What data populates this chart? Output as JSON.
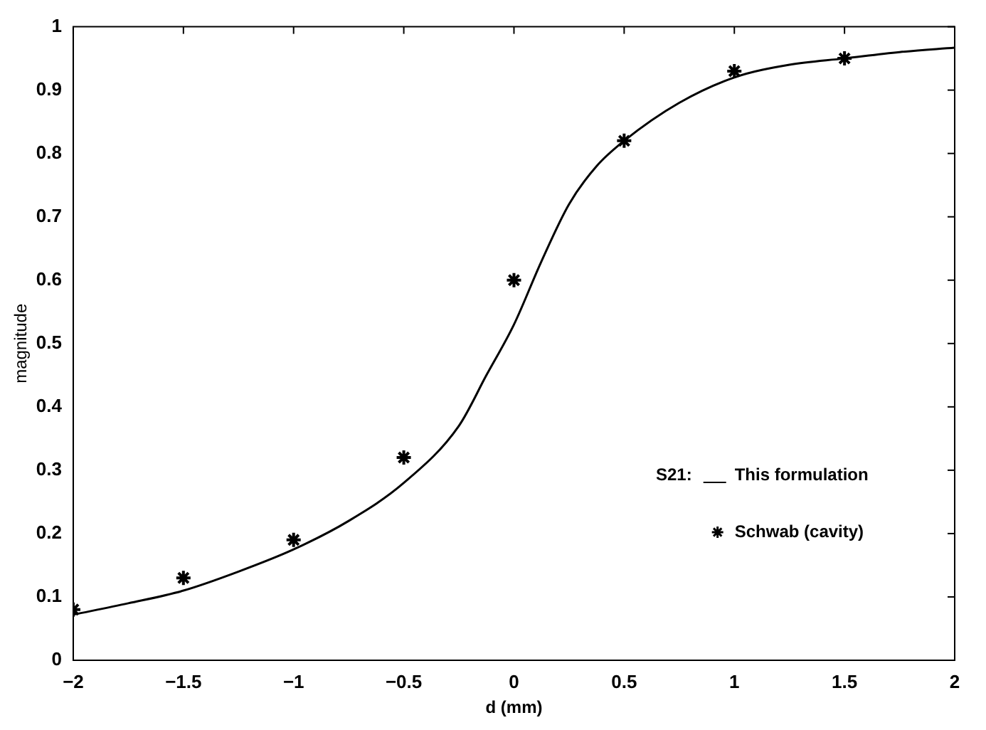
{
  "chart_data": {
    "type": "line",
    "xlabel": "d (mm)",
    "ylabel": "magnitude",
    "legend_title": "S21:",
    "xlim": [
      -2,
      2
    ],
    "xticks": [
      -2,
      -1.5,
      -1,
      -0.5,
      0,
      0.5,
      1,
      1.5,
      2
    ],
    "ylim": [
      0,
      1
    ],
    "yticks": [
      0,
      0.1,
      0.2,
      0.3,
      0.4,
      0.5,
      0.6,
      0.7,
      0.8,
      0.9,
      1
    ],
    "grid": false,
    "legend": "bottom right",
    "series": [
      {
        "name": "This formulation",
        "color": "#000000",
        "marker": "none",
        "line_style": "solid",
        "x": [
          -2,
          -1.75,
          -1.5,
          -1.25,
          -1,
          -0.75,
          -0.5,
          -0.25,
          -0.125,
          0,
          0.125,
          0.25,
          0.375,
          0.5,
          0.75,
          1,
          1.25,
          1.5,
          1.75,
          2
        ],
        "values": [
          0.072,
          0.09,
          0.11,
          0.14,
          0.175,
          0.22,
          0.28,
          0.37,
          0.45,
          0.53,
          0.63,
          0.72,
          0.78,
          0.82,
          0.88,
          0.92,
          0.94,
          0.95,
          0.96,
          0.967
        ]
      },
      {
        "name": "Schwab (cavity)",
        "type": "scatter",
        "color": "#000000",
        "marker": "cross",
        "x": [
          -2,
          -1.5,
          -1,
          -0.5,
          0,
          0.5,
          1,
          1.5
        ],
        "values": [
          0.08,
          0.13,
          0.19,
          0.32,
          0.6,
          0.82,
          0.93,
          0.95
        ]
      }
    ]
  }
}
